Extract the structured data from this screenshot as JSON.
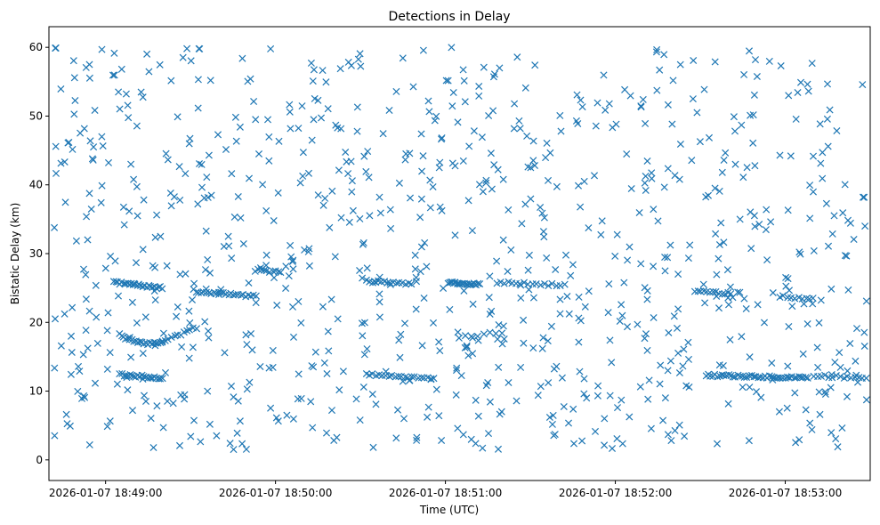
{
  "chart_data": {
    "type": "scatter",
    "title": "Detections in Delay",
    "xlabel": "Time (UTC)",
    "ylabel": "Bistatic Delay (km)",
    "marker": "x",
    "color": "#1f77b4",
    "x_unit": "seconds after 2026-01-07 18:48:40 UTC",
    "xlim": [
      0,
      290
    ],
    "ylim": [
      -3,
      63
    ],
    "x_ticks": [
      {
        "t": 20,
        "label": "2026-01-07 18:49:00"
      },
      {
        "t": 80,
        "label": "2026-01-07 18:50:00"
      },
      {
        "t": 140,
        "label": "2026-01-07 18:51:00"
      },
      {
        "t": 200,
        "label": "2026-01-07 18:52:00"
      },
      {
        "t": 260,
        "label": "2026-01-07 18:53:00"
      }
    ],
    "y_ticks": [
      0,
      10,
      20,
      30,
      40,
      50,
      60
    ],
    "grid": false,
    "legend": "none",
    "tracks": [
      {
        "t": [
          23,
          40
        ],
        "y": [
          25.8,
          25.0
        ],
        "n": 26
      },
      {
        "t": [
          25,
          40
        ],
        "y": [
          18.2,
          17.2
        ],
        "n": 22,
        "curve": "dip",
        "depth": 0.7
      },
      {
        "t": [
          40,
          52
        ],
        "y": [
          17.2,
          19.2
        ],
        "n": 12
      },
      {
        "t": [
          25,
          40
        ],
        "y": [
          12.4,
          11.9
        ],
        "n": 22
      },
      {
        "t": [
          52,
          60
        ],
        "y": [
          24.4,
          24.2
        ],
        "n": 10
      },
      {
        "t": [
          60,
          73
        ],
        "y": [
          24.2,
          23.8
        ],
        "n": 16
      },
      {
        "t": [
          73,
          82
        ],
        "y": [
          27.6,
          27.3
        ],
        "n": 10
      },
      {
        "t": [
          112,
          128
        ],
        "y": [
          26.0,
          25.6
        ],
        "n": 16
      },
      {
        "t": [
          141,
          152
        ],
        "y": [
          25.8,
          25.5
        ],
        "n": 22
      },
      {
        "t": [
          158,
          182
        ],
        "y": [
          25.8,
          25.4
        ],
        "n": 18
      },
      {
        "t": [
          145,
          160
        ],
        "y": [
          17.8,
          18.6
        ],
        "n": 8
      },
      {
        "t": [
          112,
          136
        ],
        "y": [
          12.4,
          11.9
        ],
        "n": 22
      },
      {
        "t": [
          228,
          240
        ],
        "y": [
          24.6,
          24.2
        ],
        "n": 12
      },
      {
        "t": [
          232,
          268
        ],
        "y": [
          12.3,
          11.9
        ],
        "n": 46
      },
      {
        "t": [
          270,
          290
        ],
        "y": [
          12.3,
          11.8
        ],
        "n": 16
      },
      {
        "t": [
          258,
          270
        ],
        "y": [
          23.8,
          23.4
        ],
        "n": 10
      },
      {
        "t": [
          200,
          222
        ],
        "y": [
          29.5,
          27.0
        ],
        "n": 6
      }
    ],
    "background": {
      "count": 880,
      "t_range": [
        0,
        290
      ],
      "y_range": [
        1.5,
        60
      ],
      "seed": 7
    }
  }
}
